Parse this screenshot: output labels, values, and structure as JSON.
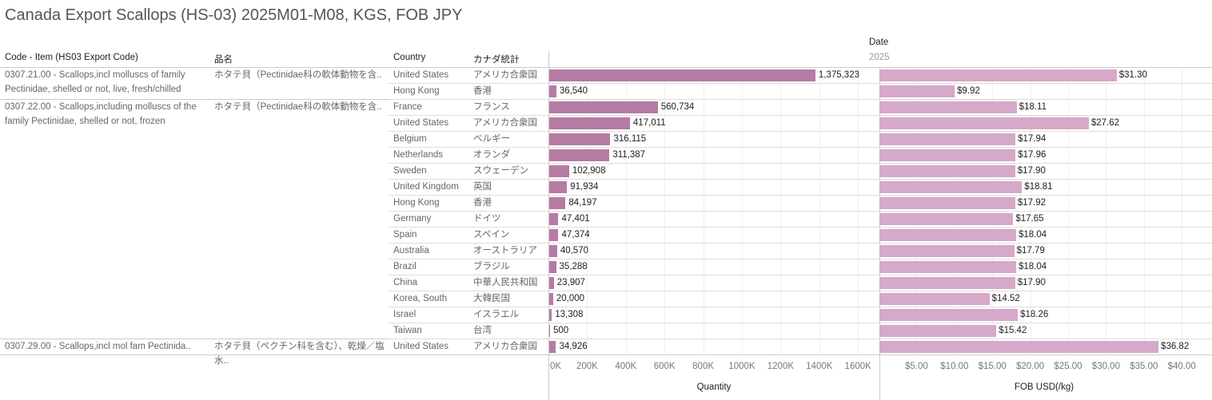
{
  "title": "Canada Export Scallops (HS-03) 2025M01-M08, KGS, FOB JPY",
  "headers": {
    "code": "Code - Item (HS03 Export Code)",
    "jp_name": "品名",
    "country": "Country",
    "jp_country": "カナダ統計",
    "date": "Date",
    "year": "2025"
  },
  "groups": [
    {
      "code": "0307.21.00 - Scallops,incl molluscs of family Pectinidae, shelled or not, live, fresh/chilled",
      "jp": "ホタテ貝（Pectinidae科の軟体動物を含..",
      "rows": 2
    },
    {
      "code": "0307.22.00 - Scallops,including molluscs of the family Pectinidae, shelled or not, frozen",
      "jp": "ホタテ貝（Pectinidae科の軟体動物を含..",
      "rows": 15
    },
    {
      "code": "0307.29.00 - Scallops,incl mol fam Pectinida..",
      "jp": "ホタテ貝（ペクチン科を含む）、乾燥／塩水..",
      "rows": 1
    }
  ],
  "colors": {
    "quantity": "#b57ba4",
    "fob": "#d6a8c9"
  },
  "chart_data": [
    {
      "type": "bar",
      "orientation": "horizontal",
      "xlabel": "Quantity",
      "xlim": [
        0,
        1600000
      ],
      "ticks": [
        "0K",
        "200K",
        "400K",
        "600K",
        "800K",
        "1000K",
        "1200K",
        "1400K",
        "1600K"
      ],
      "categories": [
        "United States",
        "Hong Kong",
        "France",
        "United States",
        "Belgium",
        "Netherlands",
        "Sweden",
        "United Kingdom",
        "Hong Kong",
        "Germany",
        "Spain",
        "Australia",
        "Brazil",
        "China",
        "Korea, South",
        "Israel",
        "Taiwan",
        "United States"
      ],
      "categories_jp": [
        "アメリカ合衆国",
        "香港",
        "フランス",
        "アメリカ合衆国",
        "ベルギー",
        "オランダ",
        "スウェーデン",
        "英国",
        "香港",
        "ドイツ",
        "スペイン",
        "オーストラリア",
        "ブラジル",
        "中華人民共和国",
        "大韓民国",
        "イスラエル",
        "台湾",
        "アメリカ合衆国"
      ],
      "values": [
        1375323,
        36540,
        560734,
        417011,
        316115,
        311387,
        102908,
        91934,
        84197,
        47401,
        47374,
        40570,
        35288,
        23907,
        20000,
        13308,
        500,
        34926
      ],
      "labels": [
        "1,375,323",
        "36,540",
        "560,734",
        "417,011",
        "316,115",
        "311,387",
        "102,908",
        "91,934",
        "84,197",
        "47,401",
        "47,374",
        "40,570",
        "35,288",
        "23,907",
        "20,000",
        "13,308",
        "500",
        "34,926"
      ]
    },
    {
      "type": "bar",
      "orientation": "horizontal",
      "xlabel": "FOB USD(/kg)",
      "xlim": [
        0,
        42
      ],
      "ticks": [
        "$5.00",
        "$10.00",
        "$15.00",
        "$20.00",
        "$25.00",
        "$30.00",
        "$35.00",
        "$40.00"
      ],
      "values": [
        31.3,
        9.92,
        18.11,
        27.62,
        17.94,
        17.96,
        17.9,
        18.81,
        17.92,
        17.65,
        18.04,
        17.79,
        18.04,
        17.9,
        14.52,
        18.26,
        15.42,
        36.82
      ],
      "labels": [
        "$31.30",
        "$9.92",
        "$18.11",
        "$27.62",
        "$17.94",
        "$17.96",
        "$17.90",
        "$18.81",
        "$17.92",
        "$17.65",
        "$18.04",
        "$17.79",
        "$18.04",
        "$17.90",
        "$14.52",
        "$18.26",
        "$15.42",
        "$36.82"
      ]
    }
  ]
}
